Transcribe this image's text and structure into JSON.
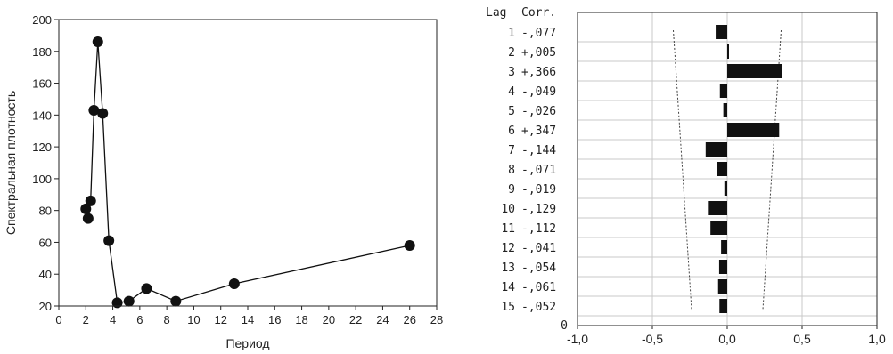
{
  "chart_data": [
    {
      "type": "line",
      "title": "",
      "xlabel": "Период",
      "ylabel": "Спектральная плотность",
      "xlim": [
        0,
        28
      ],
      "ylim": [
        20,
        200
      ],
      "xticks": [
        "0",
        "2",
        "4",
        "6",
        "8",
        "10",
        "12",
        "14",
        "16",
        "18",
        "20",
        "22",
        "24",
        "26",
        "28"
      ],
      "yticks": [
        "20",
        "40",
        "60",
        "80",
        "100",
        "120",
        "140",
        "160",
        "180",
        "200"
      ],
      "series": [
        {
          "x": [
            2.0,
            2.17,
            2.36,
            2.6,
            2.89,
            3.25,
            3.71,
            4.33,
            5.2,
            6.5,
            8.67,
            13.0,
            26.0
          ],
          "y": [
            81,
            75,
            86,
            143,
            186,
            141,
            61,
            22,
            23,
            31,
            23,
            34,
            58
          ]
        }
      ],
      "grid": false
    },
    {
      "type": "bar",
      "orientation": "horizontal",
      "header": {
        "lag": "Lag",
        "corr": "Corr."
      },
      "lags": [
        "1",
        "2",
        "3",
        "4",
        "5",
        "6",
        "7",
        "8",
        "9",
        "10",
        "11",
        "12",
        "13",
        "14",
        "15"
      ],
      "corr_labels": [
        "-,077",
        "+,005",
        "+,366",
        "-,049",
        "-,026",
        "+,347",
        "-,144",
        "-,071",
        "-,019",
        "-,129",
        "-,112",
        "-,041",
        "-,054",
        "-,061",
        "-,052"
      ],
      "values": [
        -0.077,
        0.005,
        0.366,
        -0.049,
        -0.026,
        0.347,
        -0.144,
        -0.071,
        -0.019,
        -0.129,
        -0.112,
        -0.041,
        -0.054,
        -0.061,
        -0.052
      ],
      "confidence_upper": [
        0.36,
        0.355,
        0.349,
        0.343,
        0.336,
        0.328,
        0.32,
        0.312,
        0.303,
        0.294,
        0.284,
        0.273,
        0.262,
        0.25,
        0.238
      ],
      "zero_row_label": "0",
      "xlim": [
        -1.0,
        1.0
      ],
      "xticks": [
        "-1,0",
        "-0,5",
        "0,0",
        "0,5",
        "1,0"
      ],
      "grid": true
    }
  ]
}
